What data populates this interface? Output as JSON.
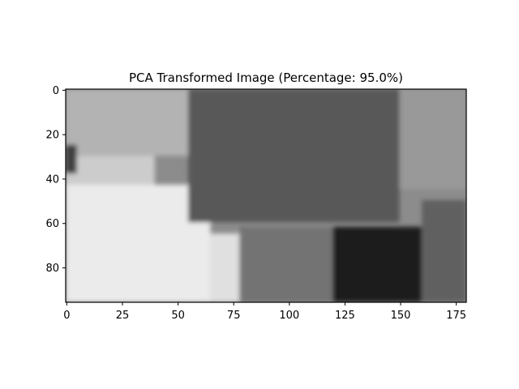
{
  "chart_data": {
    "type": "heatmap",
    "title": "PCA Transformed Image (Percentage: 95.0%)",
    "colormap": "gray",
    "xlabel": "",
    "ylabel": "",
    "image_shape": [
      96,
      180
    ],
    "xlim": [
      -0.5,
      179.5
    ],
    "ylim": [
      95.5,
      -0.5
    ],
    "x_ticks": [
      0,
      25,
      50,
      75,
      100,
      125,
      150,
      175
    ],
    "y_ticks": [
      0,
      20,
      40,
      60,
      80
    ],
    "grid": false,
    "colors": {
      "frame": "#000000",
      "background": "#ffffff"
    },
    "regions_intensity_0_to_1": [
      {
        "name": "background-left-top",
        "x": [
          0,
          60
        ],
        "y": [
          0,
          30
        ],
        "value": 0.7
      },
      {
        "name": "background-left-mid",
        "x": [
          0,
          40
        ],
        "y": [
          30,
          45
        ],
        "value": 0.8
      },
      {
        "name": "dark-spot-left",
        "x": [
          0,
          5
        ],
        "y": [
          25,
          38
        ],
        "value": 0.25
      },
      {
        "name": "bright-lower-left",
        "x": [
          0,
          65
        ],
        "y": [
          43,
          96
        ],
        "value": 0.92
      },
      {
        "name": "central-dark-mass",
        "x": [
          55,
          150
        ],
        "y": [
          0,
          60
        ],
        "value": 0.35
      },
      {
        "name": "right-background",
        "x": [
          150,
          180
        ],
        "y": [
          0,
          45
        ],
        "value": 0.6
      },
      {
        "name": "lower-middle-column",
        "x": [
          78,
          120
        ],
        "y": [
          62,
          96
        ],
        "value": 0.45
      },
      {
        "name": "lower-right-dark",
        "x": [
          120,
          160
        ],
        "y": [
          62,
          96
        ],
        "value": 0.12
      },
      {
        "name": "lower-right-edge",
        "x": [
          160,
          180
        ],
        "y": [
          50,
          96
        ],
        "value": 0.38
      },
      {
        "name": "lower-left-mid",
        "x": [
          65,
          78
        ],
        "y": [
          65,
          96
        ],
        "value": 0.88
      }
    ]
  }
}
